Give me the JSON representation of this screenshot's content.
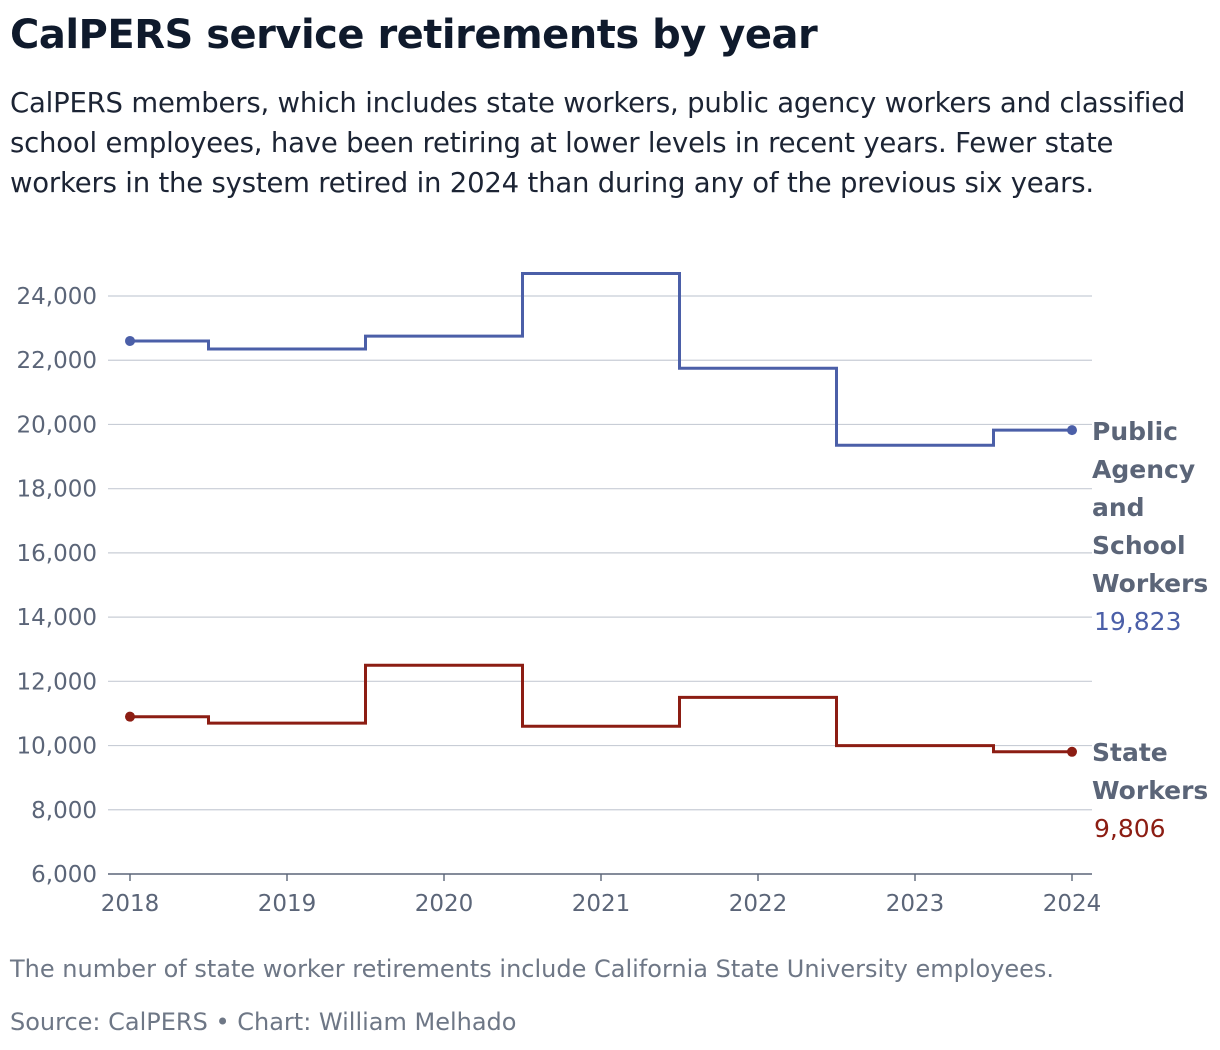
{
  "title": "CalPERS service retirements by year",
  "subtitle": "CalPERS members, which includes state workers, public agency workers and classified school employees, have been retiring at lower levels in recent years. Fewer state workers in the system retired in 2024 than during any of the previous six years.",
  "note": "The number of state worker retirements include California State University employees.",
  "source": "Source: CalPERS • Chart: William Melhado",
  "colors": {
    "public_agency": "#4b5fa8",
    "state_workers": "#8c1d13",
    "gridline": "#c8cdd6",
    "axis": "#5b6578"
  },
  "chart_data": {
    "type": "line",
    "step": true,
    "x": [
      2018,
      2019,
      2020,
      2021,
      2022,
      2023,
      2024
    ],
    "x_tick_labels": [
      "2018",
      "2019",
      "2020",
      "2021",
      "2022",
      "2023",
      "2024"
    ],
    "ylim": [
      6000,
      25000
    ],
    "y_ticks": [
      6000,
      8000,
      10000,
      12000,
      14000,
      16000,
      18000,
      20000,
      22000,
      24000
    ],
    "y_tick_labels": [
      "6,000",
      "8,000",
      "10,000",
      "12,000",
      "14,000",
      "16,000",
      "18,000",
      "20,000",
      "22,000",
      "24,000"
    ],
    "grid": true,
    "series": [
      {
        "name": "Public Agency and School Workers",
        "label_lines": [
          "Public",
          "Agency",
          "and",
          "School",
          "Workers"
        ],
        "values": [
          22600,
          22350,
          22750,
          24700,
          21750,
          19350,
          19823
        ],
        "end_label": "19,823",
        "color": "#4b5fa8"
      },
      {
        "name": "State Workers",
        "label_lines": [
          "State",
          "Workers"
        ],
        "values": [
          10900,
          10700,
          12500,
          10600,
          11500,
          10000,
          9806
        ],
        "end_label": "9,806",
        "color": "#8c1d13"
      }
    ]
  }
}
